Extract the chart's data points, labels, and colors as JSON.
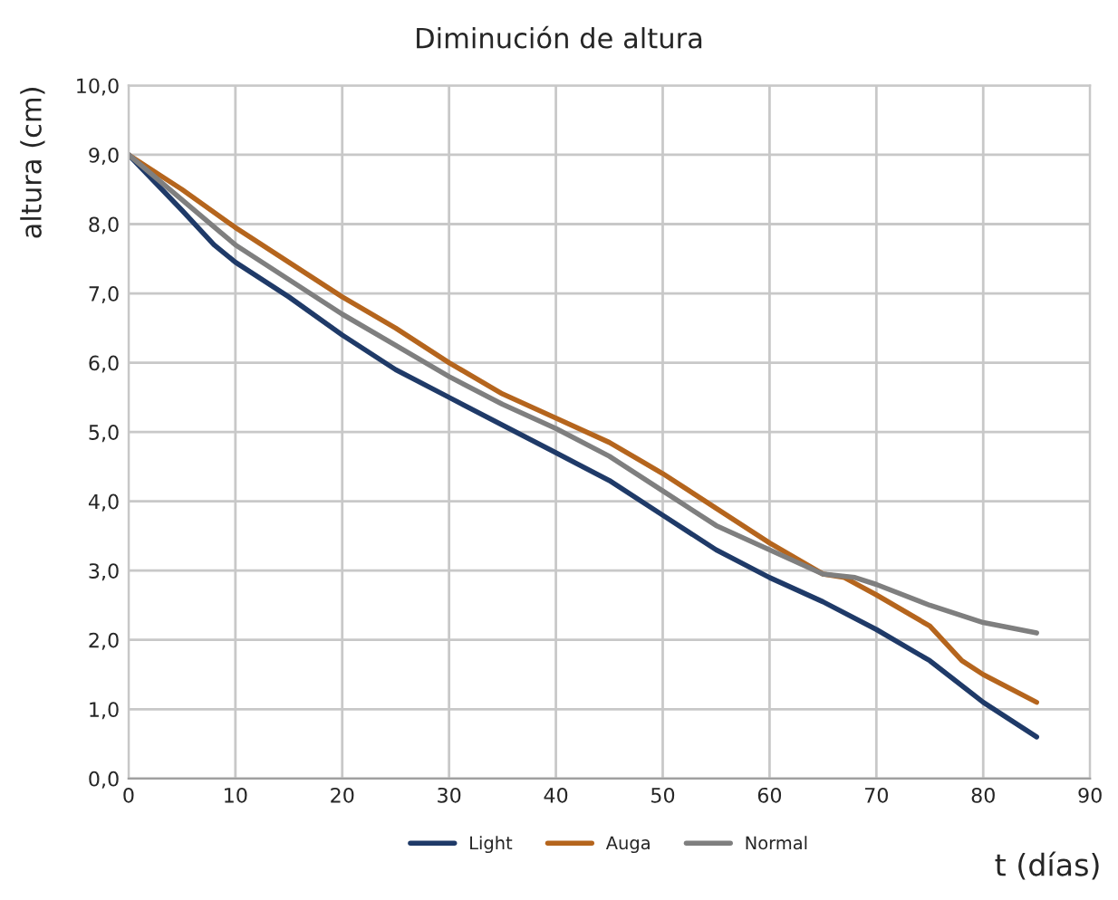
{
  "chart_data": {
    "type": "line",
    "title": "Diminución de altura",
    "xlabel": "t (días)",
    "ylabel": "altura (cm)",
    "xlim": [
      0,
      90
    ],
    "xticks": [
      0,
      10,
      20,
      30,
      40,
      50,
      60,
      70,
      80,
      90
    ],
    "ylim": [
      0,
      10
    ],
    "yticks": [
      {
        "value": 0,
        "label": "0,0"
      },
      {
        "value": 1,
        "label": "1,0"
      },
      {
        "value": 2,
        "label": "2,0"
      },
      {
        "value": 3,
        "label": "3,0"
      },
      {
        "value": 4,
        "label": "4,0"
      },
      {
        "value": 5,
        "label": "5,0"
      },
      {
        "value": 6,
        "label": "6,0"
      },
      {
        "value": 7,
        "label": "7,0"
      },
      {
        "value": 8,
        "label": "8,0"
      },
      {
        "value": 9,
        "label": "9,0"
      },
      {
        "value": 10,
        "label": "10,0"
      }
    ],
    "grid": true,
    "legend": "bottom",
    "marker": "none",
    "line_style": "solid",
    "series": [
      {
        "name": "Light",
        "color": "#1f3a68",
        "x": [
          0,
          5,
          8,
          10,
          15,
          20,
          25,
          30,
          35,
          40,
          45,
          50,
          55,
          60,
          65,
          70,
          75,
          80,
          85
        ],
        "values": [
          9.0,
          8.2,
          7.7,
          7.45,
          6.95,
          6.4,
          5.9,
          5.5,
          5.1,
          4.7,
          4.3,
          3.8,
          3.3,
          2.9,
          2.55,
          2.15,
          1.7,
          1.1,
          0.6
        ]
      },
      {
        "name": "Auga",
        "color": "#b5651d",
        "x": [
          0,
          5,
          10,
          15,
          20,
          25,
          30,
          35,
          40,
          45,
          50,
          55,
          60,
          65,
          67,
          70,
          75,
          78,
          80,
          85
        ],
        "values": [
          9.0,
          8.5,
          7.95,
          7.45,
          6.95,
          6.5,
          6.0,
          5.55,
          5.2,
          4.85,
          4.4,
          3.9,
          3.4,
          2.95,
          2.9,
          2.65,
          2.2,
          1.7,
          1.5,
          1.1
        ]
      },
      {
        "name": "Normal",
        "color": "#7f7f7f",
        "x": [
          0,
          5,
          10,
          15,
          20,
          25,
          30,
          35,
          40,
          45,
          50,
          55,
          60,
          65,
          68,
          70,
          75,
          80,
          85
        ],
        "values": [
          9.0,
          8.35,
          7.7,
          7.2,
          6.7,
          6.25,
          5.8,
          5.4,
          5.05,
          4.65,
          4.15,
          3.65,
          3.3,
          2.95,
          2.9,
          2.8,
          2.5,
          2.25,
          2.1
        ]
      }
    ]
  }
}
